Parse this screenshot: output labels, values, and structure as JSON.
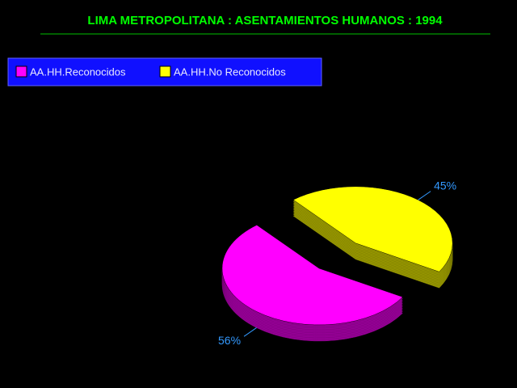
{
  "chart_data": {
    "type": "pie",
    "title": "LIMA METROPOLITANA : ASENTAMIENTOS HUMANOS : 1994",
    "categories": [
      "AA.HH.Reconocidos",
      "AA.HH.No Reconocidos"
    ],
    "values": [
      56,
      45
    ],
    "value_labels": [
      "56%",
      "45%"
    ],
    "colors": [
      "#ff00ff",
      "#ffff00"
    ],
    "legend": "top-left"
  }
}
